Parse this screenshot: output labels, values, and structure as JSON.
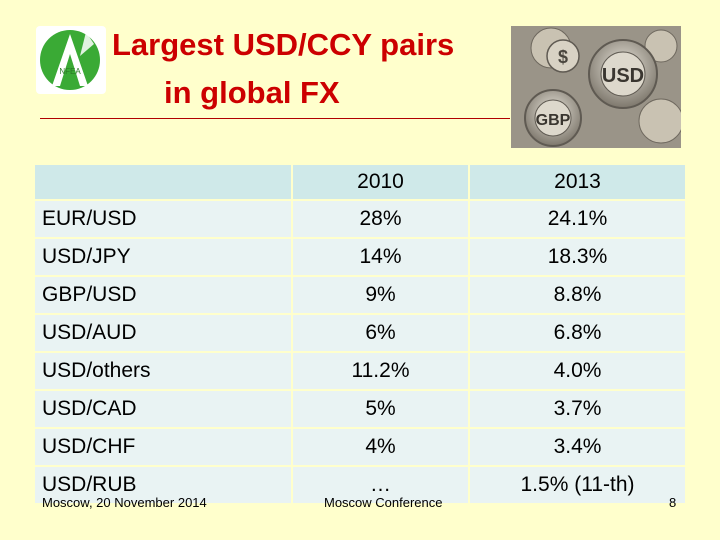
{
  "title": {
    "line1": "Largest USD/CCY pairs",
    "line2": "in global FX"
  },
  "logo_text": "NFEA",
  "gears_image": {
    "labels": [
      "USD",
      "GBP",
      "$"
    ]
  },
  "table": {
    "headers": [
      "",
      "2010",
      "2013"
    ],
    "rows": [
      {
        "pair": "EUR/USD",
        "y2010": "28%",
        "y2013": "24.1%"
      },
      {
        "pair": "USD/JPY",
        "y2010": "14%",
        "y2013": "18.3%"
      },
      {
        "pair": "GBP/USD",
        "y2010": "9%",
        "y2013": "8.8%"
      },
      {
        "pair": "USD/AUD",
        "y2010": "6%",
        "y2013": "6.8%"
      },
      {
        "pair": "USD/others",
        "y2010": "11.2%",
        "y2013": "4.0%"
      },
      {
        "pair": "USD/CAD",
        "y2010": "5%",
        "y2013": "3.7%"
      },
      {
        "pair": "USD/CHF",
        "y2010": "4%",
        "y2013": "3.4%"
      },
      {
        "pair": "USD/RUB",
        "y2010": "…",
        "y2013": "1.5% (11-th)"
      }
    ]
  },
  "footer": {
    "left": "Moscow, 20 November 2014",
    "center": "Moscow Conference",
    "page": "8"
  },
  "colors": {
    "background": "#ffffcc",
    "title": "#cc0000",
    "header_row": "#cfe9e9",
    "body_row": "#e9f3f3",
    "logo_green": "#3aaa35"
  }
}
